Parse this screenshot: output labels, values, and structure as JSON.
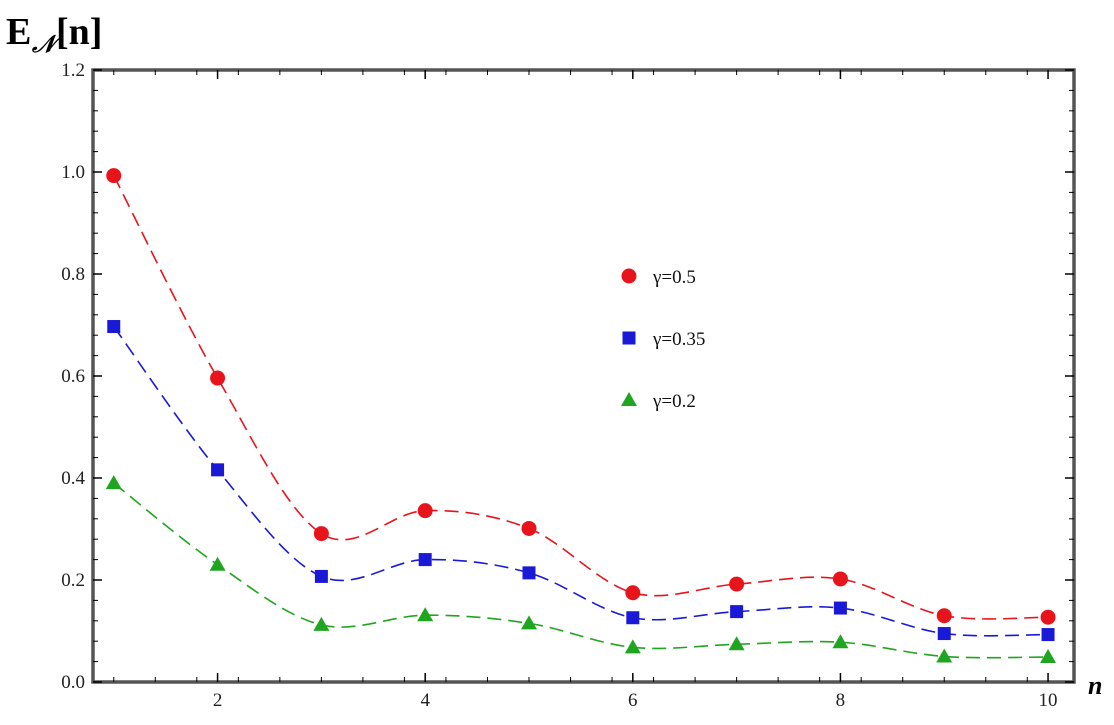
{
  "chart_data": {
    "type": "line",
    "title": "",
    "xlabel": "n",
    "ylabel": "E",
    "ylabel_subscript": "𝒩",
    "ylabel_argument": "[n]",
    "xlim": [
      0.8,
      10.25
    ],
    "ylim": [
      0,
      1.2
    ],
    "x_ticks": [
      2,
      4,
      6,
      8,
      10
    ],
    "y_ticks": [
      0.0,
      0.2,
      0.4,
      0.6,
      0.8,
      1.0,
      1.2
    ],
    "y_tick_labels": [
      "0.0",
      "0.2",
      "0.4",
      "0.6",
      "0.8",
      "1.0",
      "1.2"
    ],
    "grid": false,
    "legend_position": "center-right",
    "x": [
      1,
      2,
      3,
      4,
      5,
      6,
      7,
      8,
      9,
      10
    ],
    "series": [
      {
        "name": "γ=0.5",
        "marker": "circle",
        "color": "#e8141c",
        "values": [
          0.993,
          0.596,
          0.291,
          0.336,
          0.301,
          0.175,
          0.192,
          0.202,
          0.13,
          0.127
        ]
      },
      {
        "name": "γ=0.35",
        "marker": "square",
        "color": "#1a1ad6",
        "values": [
          0.697,
          0.416,
          0.207,
          0.24,
          0.214,
          0.126,
          0.138,
          0.145,
          0.095,
          0.093
        ]
      },
      {
        "name": "γ=0.2",
        "marker": "triangle",
        "color": "#1fa51f",
        "values": [
          0.39,
          0.23,
          0.112,
          0.131,
          0.115,
          0.068,
          0.074,
          0.078,
          0.05,
          0.049
        ]
      }
    ]
  }
}
